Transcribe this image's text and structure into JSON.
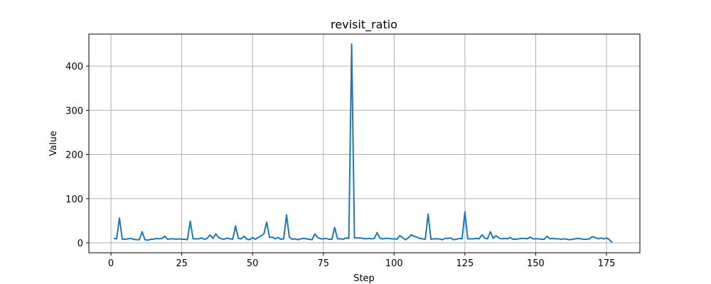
{
  "chart_data": {
    "type": "line",
    "title": "revisit_ratio",
    "xlabel": "Step",
    "ylabel": "Value",
    "xlim": [
      -7.8,
      186.8
    ],
    "ylim": [
      -22.5,
      472.5
    ],
    "xticks": [
      0,
      25,
      50,
      75,
      100,
      125,
      150,
      175
    ],
    "yticks": [
      0,
      100,
      200,
      300,
      400
    ],
    "grid": true,
    "line_color": "#1f77b4",
    "series": [
      {
        "x": [
          1,
          2,
          3,
          4,
          5,
          6,
          7,
          8,
          9,
          10,
          11,
          12,
          13,
          14,
          15,
          16,
          17,
          18,
          19,
          20,
          21,
          22,
          23,
          24,
          25,
          26,
          27,
          28,
          29,
          30,
          31,
          32,
          33,
          34,
          35,
          36,
          37,
          38,
          39,
          40,
          41,
          42,
          43,
          44,
          45,
          46,
          47,
          48,
          49,
          50,
          51,
          52,
          53,
          54,
          55,
          56,
          57,
          58,
          59,
          60,
          61,
          62,
          63,
          64,
          65,
          66,
          67,
          68,
          69,
          70,
          71,
          72,
          73,
          74,
          75,
          76,
          77,
          78,
          79,
          80,
          81,
          82,
          83,
          84,
          85,
          86,
          87,
          88,
          89,
          90,
          91,
          92,
          93,
          94,
          95,
          96,
          97,
          98,
          99,
          100,
          101,
          102,
          103,
          104,
          105,
          106,
          107,
          108,
          109,
          110,
          111,
          112,
          113,
          114,
          115,
          116,
          117,
          118,
          119,
          120,
          121,
          122,
          123,
          124,
          125,
          126,
          127,
          128,
          129,
          130,
          131,
          132,
          133,
          134,
          135,
          136,
          137,
          138,
          139,
          140,
          141,
          142,
          143,
          144,
          145,
          146,
          147,
          148,
          149,
          150,
          151,
          152,
          153,
          154,
          155,
          156,
          157,
          158,
          159,
          160,
          161,
          162,
          163,
          164,
          165,
          166,
          167,
          168,
          169,
          170,
          171,
          172,
          173,
          174,
          175,
          176,
          177
        ],
        "values": [
          10,
          9,
          56,
          8,
          8,
          9,
          10,
          8,
          7,
          7,
          25,
          7,
          6,
          8,
          8,
          10,
          9,
          10,
          15,
          8,
          9,
          9,
          8,
          9,
          8,
          8,
          7,
          49,
          9,
          9,
          9,
          11,
          8,
          10,
          18,
          10,
          20,
          12,
          9,
          8,
          11,
          9,
          8,
          38,
          10,
          9,
          15,
          8,
          7,
          12,
          8,
          12,
          16,
          20,
          47,
          12,
          13,
          9,
          12,
          8,
          9,
          63,
          13,
          8,
          9,
          7,
          9,
          10,
          9,
          8,
          7,
          20,
          12,
          9,
          9,
          10,
          8,
          8,
          35,
          9,
          9,
          8,
          11,
          10,
          450,
          11,
          11,
          11,
          10,
          9,
          10,
          9,
          10,
          23,
          10,
          9,
          10,
          10,
          9,
          9,
          8,
          16,
          12,
          7,
          11,
          18,
          15,
          13,
          10,
          9,
          8,
          65,
          8,
          9,
          9,
          9,
          7,
          10,
          10,
          11,
          7,
          8,
          10,
          9,
          70,
          9,
          9,
          9,
          10,
          9,
          18,
          11,
          9,
          25,
          10,
          16,
          11,
          9,
          10,
          9,
          12,
          8,
          8,
          9,
          10,
          10,
          9,
          13,
          9,
          9,
          9,
          8,
          8,
          15,
          9,
          10,
          9,
          9,
          8,
          9,
          8,
          7,
          8,
          9,
          10,
          9,
          8,
          8,
          9,
          14,
          12,
          9,
          11,
          9,
          11,
          7,
          1
        ]
      }
    ]
  }
}
